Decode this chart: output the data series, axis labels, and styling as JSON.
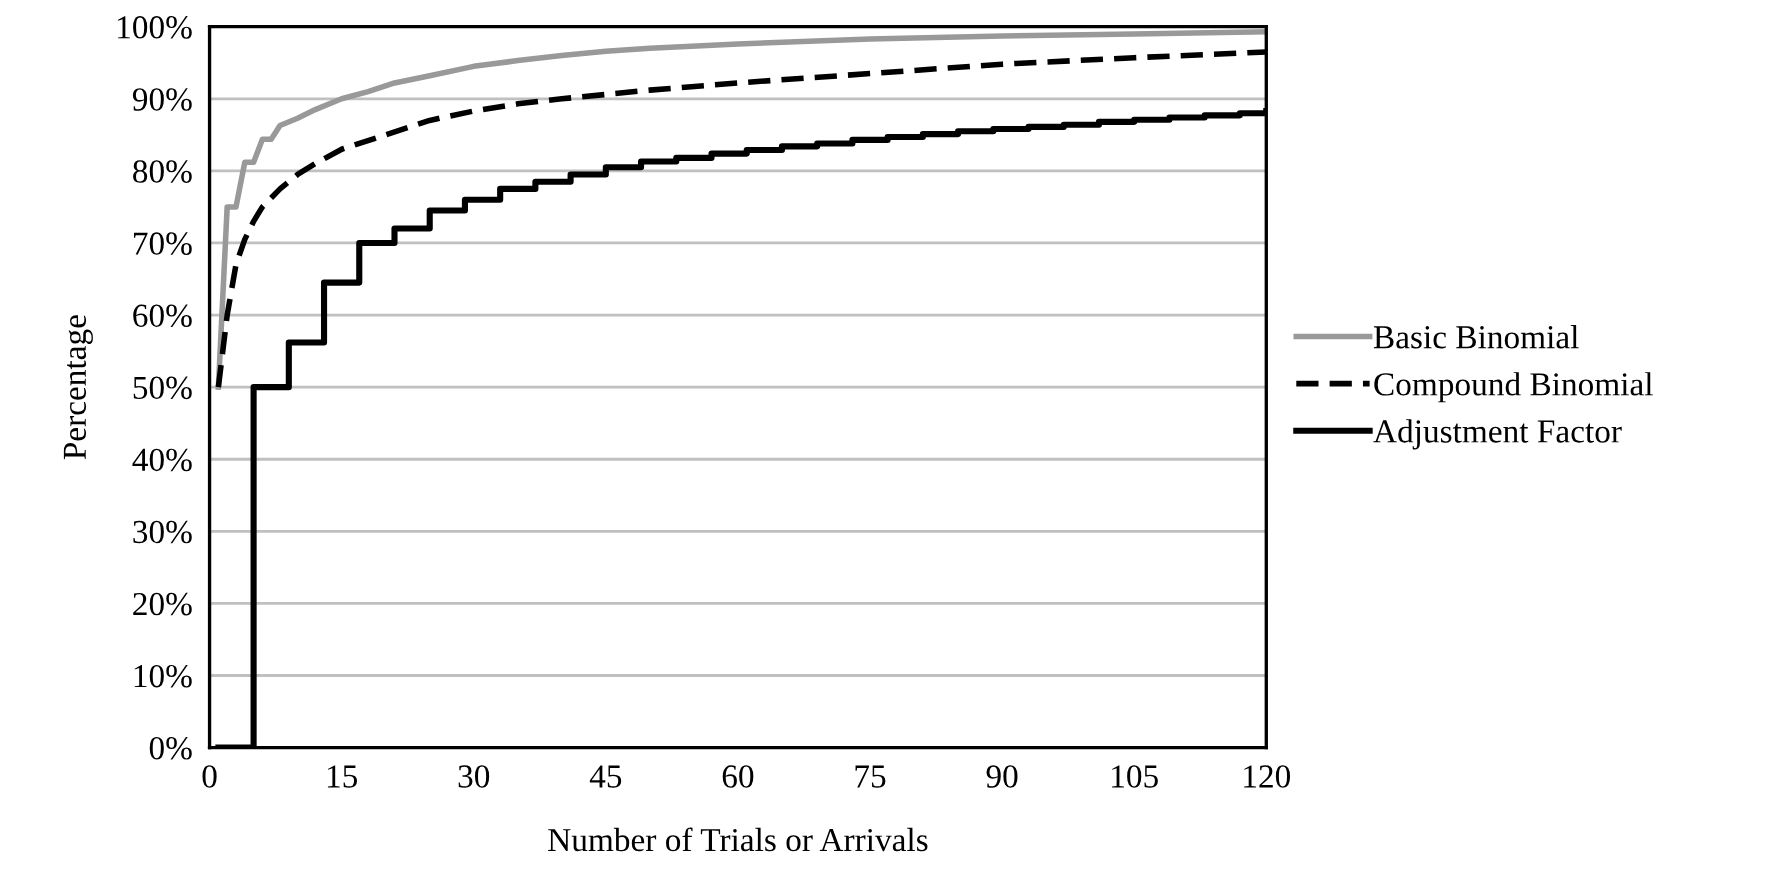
{
  "chart_data": {
    "type": "line",
    "xlabel": "Number of Trials or Arrivals",
    "ylabel": "Percentage",
    "xlim": [
      0,
      120
    ],
    "xticks": [
      0,
      15,
      30,
      45,
      60,
      75,
      90,
      105,
      120
    ],
    "ylim": [
      0,
      100
    ],
    "yticks": [
      {
        "value": 0,
        "label": "0%"
      },
      {
        "value": 10,
        "label": "10%"
      },
      {
        "value": 20,
        "label": "20%"
      },
      {
        "value": 30,
        "label": "30%"
      },
      {
        "value": 40,
        "label": "40%"
      },
      {
        "value": 50,
        "label": "50%"
      },
      {
        "value": 60,
        "label": "60%"
      },
      {
        "value": 70,
        "label": "70%"
      },
      {
        "value": 80,
        "label": "80%"
      },
      {
        "value": 90,
        "label": "90%"
      },
      {
        "value": 100,
        "label": "100%"
      }
    ],
    "grid": "y",
    "legend": "right",
    "marker": "none",
    "series": [
      {
        "name": "Basic Binomial",
        "color": "#999999",
        "line_style": "solid",
        "x": [
          1,
          2,
          3,
          4,
          5,
          6,
          7,
          8,
          10,
          12,
          15,
          18,
          21,
          25,
          30,
          35,
          40,
          45,
          50,
          60,
          75,
          90,
          105,
          120
        ],
        "values": [
          50,
          75,
          75,
          81.2,
          81.2,
          84.4,
          84.4,
          86.3,
          87.3,
          88.5,
          90,
          91,
          92.2,
          93.2,
          94.5,
          95.3,
          96,
          96.6,
          97,
          97.6,
          98.3,
          98.7,
          99,
          99.3
        ]
      },
      {
        "name": "Compound Binomial",
        "color": "#000000",
        "line_style": "dashed",
        "x": [
          1,
          2,
          3,
          4,
          5,
          6,
          8,
          10,
          12,
          15,
          20,
          25,
          30,
          35,
          40,
          45,
          50,
          60,
          75,
          90,
          105,
          120
        ],
        "values": [
          50,
          60,
          67,
          70.5,
          73,
          75,
          77.5,
          79.5,
          81,
          83,
          85,
          87,
          88.3,
          89.3,
          90,
          90.6,
          91.2,
          92.2,
          93.5,
          94.8,
          95.7,
          96.5
        ]
      },
      {
        "name": "Adjustment Factor",
        "type": "step",
        "color": "#000000",
        "line_style": "solid",
        "x": [
          1,
          5,
          9,
          13,
          17,
          21,
          25,
          29,
          33,
          37,
          41,
          45,
          49,
          53,
          57,
          61,
          65,
          69,
          73,
          77,
          81,
          85,
          89,
          93,
          97,
          101,
          105,
          109,
          113,
          117,
          120
        ],
        "values": [
          0,
          50,
          56.2,
          64.5,
          70,
          72,
          74.5,
          76,
          77.5,
          78.5,
          79.5,
          80.5,
          81.3,
          81.8,
          82.4,
          82.9,
          83.4,
          83.8,
          84.3,
          84.7,
          85.1,
          85.5,
          85.8,
          86.1,
          86.4,
          86.8,
          87.1,
          87.4,
          87.7,
          88,
          88.3
        ]
      }
    ]
  }
}
